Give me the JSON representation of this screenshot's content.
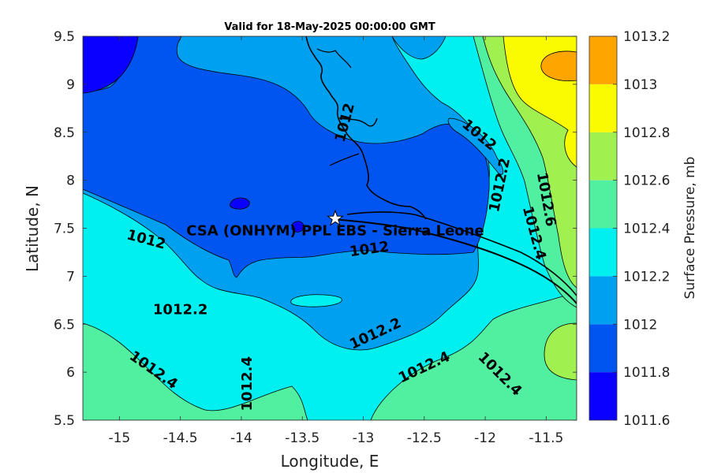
{
  "title": "Valid for 18-May-2025 00:00:00 GMT",
  "station_label": "CSA (ONHYM) PPL EBS  - Sierra Leone",
  "station_marker": {
    "lon": -13.23,
    "lat": 7.6
  },
  "axes": {
    "xlabel": "Longitude, E",
    "ylabel": "Latitude, N",
    "xlim": [
      -15.3,
      -11.25
    ],
    "ylim": [
      5.5,
      9.5
    ],
    "xticks": [
      -15,
      -14.5,
      -14,
      -13.5,
      -13,
      -12.5,
      -12,
      -11.5
    ],
    "xtick_labels": [
      "-15",
      "-14.5",
      "-14",
      "-13.5",
      "-13",
      "-12.5",
      "-12",
      "-11.5"
    ],
    "yticks": [
      5.5,
      6,
      6.5,
      7,
      7.5,
      8,
      8.5,
      9,
      9.5
    ],
    "ytick_labels": [
      "5.5",
      "6",
      "6.5",
      "7",
      "7.5",
      "8",
      "8.5",
      "9",
      "9.5"
    ]
  },
  "colorbar": {
    "label": "Surface Pressure, mb",
    "levels": [
      1011.6,
      1011.8,
      1012,
      1012.2,
      1012.4,
      1012.6,
      1012.8,
      1013,
      1013.2
    ],
    "tick_labels": [
      "1011.6",
      "1011.8",
      "1012",
      "1012.2",
      "1012.4",
      "1012.6",
      "1012.8",
      "1013",
      "1013.2"
    ],
    "colors": [
      "#0a00ff",
      "#0055f0",
      "#00a0f0",
      "#00f0f0",
      "#50f0a0",
      "#a0f050",
      "#fafa00",
      "#ffa500",
      "#ff5000"
    ]
  },
  "contour_labels": [
    {
      "text": "1012",
      "lon": -14.78,
      "lat": 7.38,
      "angle": 15
    },
    {
      "text": "1012",
      "lon": -13.15,
      "lat": 8.6,
      "angle": -75
    },
    {
      "text": "1012",
      "lon": -12.05,
      "lat": 8.47,
      "angle": 40
    },
    {
      "text": "1012",
      "lon": -12.95,
      "lat": 7.28,
      "angle": -8
    },
    {
      "text": "1012.2",
      "lon": -14.5,
      "lat": 6.65,
      "angle": 0
    },
    {
      "text": "1012.2",
      "lon": -11.88,
      "lat": 7.95,
      "angle": -78
    },
    {
      "text": "1012.2",
      "lon": -12.9,
      "lat": 6.4,
      "angle": -25
    },
    {
      "text": "1012.4",
      "lon": -14.72,
      "lat": 6.02,
      "angle": 35
    },
    {
      "text": "1012.4",
      "lon": -13.95,
      "lat": 5.88,
      "angle": -90
    },
    {
      "text": "1012.4",
      "lon": -12.5,
      "lat": 6.05,
      "angle": -25
    },
    {
      "text": "1012.4",
      "lon": -11.88,
      "lat": 5.98,
      "angle": 45
    },
    {
      "text": "1012.4",
      "lon": -11.6,
      "lat": 7.45,
      "angle": 75
    },
    {
      "text": "1012.6",
      "lon": -11.5,
      "lat": 7.8,
      "angle": 80
    }
  ]
}
